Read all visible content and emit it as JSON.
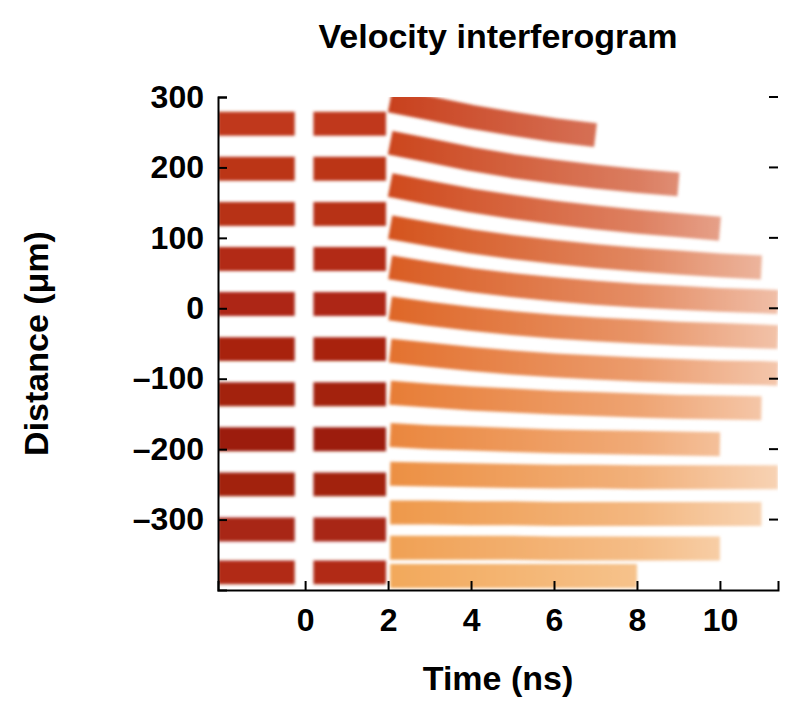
{
  "chart_data": {
    "type": "line",
    "title": "Velocity interferogram",
    "x_label": "Time (ns)",
    "y_label": "Distance (μm)",
    "xlim": [
      -2.1,
      11.4
    ],
    "ylim": [
      -400,
      300
    ],
    "xticks": [
      0,
      2,
      4,
      6,
      8,
      10
    ],
    "yticks": [
      300,
      200,
      100,
      0,
      {
        "value": -100,
        "label": "–100"
      },
      {
        "value": -200,
        "label": "–200"
      },
      {
        "value": -300,
        "label": "–300"
      }
    ],
    "grid": false,
    "series": [
      {
        "color": "#c0391c",
        "x": [
          -2.1,
          -1,
          -0.25,
          0,
          0.2,
          1,
          1.95
        ],
        "values": [
          262,
          262,
          262,
          null,
          262,
          262,
          262
        ]
      },
      {
        "color": "#bb3419",
        "x": [
          -2.1,
          -1,
          -0.25,
          0,
          0.2,
          1,
          1.95
        ],
        "values": [
          198,
          198,
          198,
          null,
          198,
          198,
          198
        ]
      },
      {
        "color": "#b73017",
        "x": [
          -2.1,
          -1,
          -0.25,
          0,
          0.2,
          1,
          1.95
        ],
        "values": [
          134,
          134,
          134,
          null,
          134,
          134,
          134
        ]
      },
      {
        "color": "#b22c15",
        "x": [
          -2.1,
          -1,
          -0.25,
          0,
          0.2,
          1,
          1.95
        ],
        "values": [
          70,
          70,
          70,
          null,
          70,
          70,
          70
        ]
      },
      {
        "color": "#ad2813",
        "x": [
          -2.1,
          -1,
          -0.25,
          0,
          0.2,
          1,
          1.95
        ],
        "values": [
          6,
          6,
          6,
          null,
          6,
          6,
          6
        ]
      },
      {
        "color": "#a82411",
        "x": [
          -2.1,
          -1,
          -0.25,
          0,
          0.2,
          1,
          1.95
        ],
        "values": [
          -58,
          -58,
          -58,
          null,
          -58,
          -58,
          -58
        ]
      },
      {
        "color": "#a3200f",
        "x": [
          -2.1,
          -1,
          -0.25,
          0,
          0.2,
          1,
          1.95
        ],
        "values": [
          -122,
          -122,
          -122,
          null,
          -122,
          -122,
          -122
        ]
      },
      {
        "color": "#9c1c0d",
        "x": [
          -2.1,
          -1,
          -0.25,
          0,
          0.2,
          1,
          1.95
        ],
        "values": [
          -186,
          -186,
          -186,
          null,
          -186,
          -186,
          -186
        ]
      },
      {
        "color": "#a2200f",
        "x": [
          -2.1,
          -1,
          -0.25,
          0,
          0.2,
          1,
          1.95
        ],
        "values": [
          -250,
          -250,
          -250,
          null,
          -250,
          -250,
          -250
        ]
      },
      {
        "color": "#a82512",
        "x": [
          -2.1,
          -1,
          -0.25,
          0,
          0.2,
          1,
          1.95
        ],
        "values": [
          -314,
          -314,
          -314,
          null,
          -314,
          -314,
          -314
        ]
      },
      {
        "color": "#b12c15",
        "x": [
          -2.1,
          -1,
          -0.25,
          0,
          0.2,
          1,
          1.95
        ],
        "values": [
          -375,
          -375,
          -375,
          null,
          -375,
          -375,
          -375
        ]
      },
      {
        "color": "#c8401a",
        "x": [
          2.05,
          3,
          4,
          5,
          6,
          7,
          8,
          9,
          10,
          11,
          11.4
        ],
        "values": [
          295,
          284,
          272,
          262,
          253,
          246,
          null,
          null,
          null,
          null,
          null
        ]
      },
      {
        "color": "#cb441b",
        "x": [
          2.05,
          3,
          4,
          5,
          6,
          7,
          8,
          9,
          10,
          11,
          11.4
        ],
        "values": [
          235,
          224,
          212,
          202,
          194,
          187,
          181,
          176,
          null,
          null,
          null
        ]
      },
      {
        "color": "#cf4a1d",
        "x": [
          2.05,
          3,
          4,
          5,
          6,
          7,
          8,
          9,
          10,
          11,
          11.4
        ],
        "values": [
          175,
          164,
          153,
          144,
          136,
          129,
          123,
          118,
          113,
          null,
          null
        ]
      },
      {
        "color": "#d4521f",
        "x": [
          2.05,
          3,
          4,
          5,
          6,
          7,
          8,
          9,
          10,
          11,
          11.4
        ],
        "values": [
          115,
          105,
          95,
          87,
          80,
          74,
          69,
          65,
          61,
          58,
          null
        ]
      },
      {
        "color": "#d95b23",
        "x": [
          2.05,
          3,
          4,
          5,
          6,
          7,
          8,
          9,
          10,
          11,
          11.4
        ],
        "values": [
          58,
          49,
          40,
          33,
          27,
          22,
          18,
          15,
          12,
          10,
          9
        ]
      },
      {
        "color": "#de6628",
        "x": [
          2.05,
          3,
          4,
          5,
          6,
          7,
          8,
          9,
          10,
          11,
          11.4
        ],
        "values": [
          0,
          -8,
          -15,
          -21,
          -26,
          -30,
          -33,
          -36,
          -38,
          -40,
          -41
        ]
      },
      {
        "color": "#e3712e",
        "x": [
          2.05,
          3,
          4,
          5,
          6,
          7,
          8,
          9,
          10,
          11,
          11.4
        ],
        "values": [
          -60,
          -66,
          -72,
          -77,
          -81,
          -84,
          -87,
          -89,
          -91,
          -92,
          -93
        ]
      },
      {
        "color": "#e77c35",
        "x": [
          2.05,
          3,
          4,
          5,
          6,
          7,
          8,
          9,
          10,
          11,
          11.4
        ],
        "values": [
          -120,
          -124,
          -128,
          -131,
          -134,
          -136,
          -138,
          -140,
          -141,
          -142,
          null
        ]
      },
      {
        "color": "#ea863c",
        "x": [
          2.05,
          3,
          4,
          5,
          6,
          7,
          8,
          9,
          10,
          11,
          11.4
        ],
        "values": [
          -180,
          -183,
          -185,
          -187,
          -189,
          -190,
          -191,
          -192,
          -193,
          null,
          null
        ]
      },
      {
        "color": "#ec8f43",
        "x": [
          2.05,
          3,
          4,
          5,
          6,
          7,
          8,
          9,
          10,
          11,
          11.4
        ],
        "values": [
          -235,
          -236,
          -237,
          -238,
          -239,
          -239,
          -240,
          -240,
          -240,
          -240,
          -240
        ]
      },
      {
        "color": "#ee984a",
        "x": [
          2.05,
          3,
          4,
          5,
          6,
          7,
          8,
          9,
          10,
          11,
          11.4
        ],
        "values": [
          -290,
          -290,
          -291,
          -291,
          -292,
          -292,
          -292,
          -292,
          -292,
          -292,
          null
        ]
      },
      {
        "color": "#f0a052",
        "x": [
          2.05,
          3,
          4,
          5,
          6,
          7,
          8,
          9,
          10,
          11,
          11.4
        ],
        "values": [
          -340,
          -340,
          -340,
          -340,
          -341,
          -341,
          -341,
          -341,
          -341,
          null,
          null
        ]
      },
      {
        "color": "#f2a85a",
        "x": [
          2.05,
          3,
          4,
          5,
          6,
          7,
          8,
          9,
          10,
          11,
          11.4
        ],
        "values": [
          -380,
          -380,
          -380,
          -380,
          -380,
          -380,
          -380,
          null,
          null,
          null,
          null
        ]
      }
    ]
  }
}
